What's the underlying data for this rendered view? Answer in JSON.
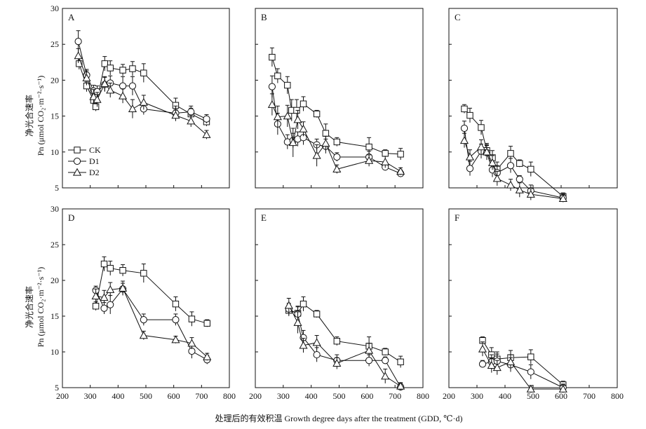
{
  "figure": {
    "x_axis_title": "处理后的有效积温 Growth degree days after the  treatment (GDD, ℃·d)",
    "y_axis_title_cn": "净光合速率",
    "y_axis_title_en": "Pn (μmol CO₂·m⁻²·s⁻¹)",
    "legend": {
      "entries": [
        {
          "label": "CK",
          "marker": "square"
        },
        {
          "label": "D1",
          "marker": "circle"
        },
        {
          "label": "D2",
          "marker": "triangle"
        }
      ]
    }
  },
  "chart_data": [
    {
      "panel": "A",
      "type": "line",
      "xlim": [
        200,
        800
      ],
      "ylim": [
        5,
        30
      ],
      "x_ticks": [
        200,
        300,
        400,
        500,
        600,
        700,
        800
      ],
      "y_ticks": [
        5,
        10,
        15,
        20,
        25,
        30
      ],
      "show_x_tick_labels": false,
      "show_y_tick_labels": true,
      "grid": false,
      "series": [
        {
          "name": "CK",
          "marker": "square",
          "points": [
            [
              260,
              22.3,
              0.8
            ],
            [
              287,
              19.2,
              0.8
            ],
            [
              312,
              17.2,
              0.8
            ],
            [
              320,
              16.3,
              0.6
            ],
            [
              352,
              22.3,
              1.0
            ],
            [
              372,
              21.7,
              1.0
            ],
            [
              417,
              21.4,
              0.8
            ],
            [
              452,
              21.6,
              1.0
            ],
            [
              492,
              21.0,
              1.3
            ],
            [
              607,
              16.5,
              1.0
            ],
            [
              662,
              15.3,
              0.8
            ],
            [
              718,
              14.2,
              0.6
            ]
          ]
        },
        {
          "name": "D1",
          "marker": "circle",
          "points": [
            [
              257,
              25.4,
              1.5
            ],
            [
              287,
              20.7,
              0.8
            ],
            [
              312,
              18.5,
              0.8
            ],
            [
              325,
              18.4,
              0.8
            ],
            [
              352,
              19.4,
              1.0
            ],
            [
              372,
              19.6,
              1.0
            ],
            [
              417,
              19.2,
              1.3
            ],
            [
              452,
              19.2,
              1.3
            ],
            [
              492,
              16.0,
              0.8
            ],
            [
              607,
              15.4,
              1.0
            ],
            [
              662,
              15.6,
              0.8
            ],
            [
              718,
              14.6,
              0.6
            ]
          ]
        },
        {
          "name": "D2",
          "marker": "triangle",
          "points": [
            [
              257,
              23.4,
              1.0
            ],
            [
              287,
              20.3,
              1.0
            ],
            [
              312,
              17.7,
              1.0
            ],
            [
              325,
              17.3,
              1.0
            ],
            [
              352,
              19.5,
              1.0
            ],
            [
              372,
              18.6,
              1.0
            ],
            [
              417,
              17.8,
              1.0
            ],
            [
              452,
              16.0,
              1.3
            ],
            [
              492,
              16.9,
              1.0
            ],
            [
              607,
              15.1,
              0.8
            ],
            [
              662,
              14.3,
              0.8
            ],
            [
              718,
              12.4,
              0.6
            ]
          ]
        }
      ]
    },
    {
      "panel": "B",
      "type": "line",
      "xlim": [
        200,
        800
      ],
      "ylim": [
        5,
        30
      ],
      "x_ticks": [
        200,
        300,
        400,
        500,
        600,
        700,
        800
      ],
      "y_ticks": [
        5,
        10,
        15,
        20,
        25,
        30
      ],
      "show_x_tick_labels": false,
      "show_y_tick_labels": false,
      "grid": false,
      "series": [
        {
          "name": "CK",
          "marker": "square",
          "points": [
            [
              260,
              23.2,
              1.3
            ],
            [
              280,
              20.6,
              1.0
            ],
            [
              315,
              19.3,
              1.2
            ],
            [
              330,
              15.8,
              1.5
            ],
            [
              348,
              15.8,
              1.5
            ],
            [
              372,
              16.7,
              1.0
            ],
            [
              420,
              15.3,
              0.5
            ],
            [
              452,
              12.6,
              1.3
            ],
            [
              492,
              11.4,
              0.6
            ],
            [
              607,
              10.7,
              1.3
            ],
            [
              665,
              9.8,
              0.5
            ],
            [
              720,
              9.7,
              0.8
            ]
          ]
        },
        {
          "name": "D1",
          "marker": "circle",
          "points": [
            [
              260,
              19.1,
              1.5
            ],
            [
              280,
              13.9,
              1.5
            ],
            [
              315,
              11.4,
              1.0
            ],
            [
              335,
              11.6,
              1.0
            ],
            [
              352,
              11.8,
              1.0
            ],
            [
              372,
              12.0,
              1.0
            ],
            [
              420,
              11.0,
              0.8
            ],
            [
              452,
              10.8,
              1.0
            ],
            [
              492,
              9.3,
              0.6
            ],
            [
              607,
              9.3,
              0.8
            ],
            [
              665,
              7.9,
              0.5
            ],
            [
              720,
              7.0,
              0.5
            ]
          ]
        },
        {
          "name": "D2",
          "marker": "triangle",
          "points": [
            [
              260,
              16.6,
              1.5
            ],
            [
              280,
              14.9,
              1.5
            ],
            [
              315,
              15.0,
              1.5
            ],
            [
              335,
              11.3,
              2.0
            ],
            [
              352,
              14.5,
              1.3
            ],
            [
              372,
              13.2,
              1.0
            ],
            [
              420,
              9.5,
              1.5
            ],
            [
              452,
              11.2,
              1.0
            ],
            [
              492,
              7.6,
              0.6
            ],
            [
              607,
              8.8,
              0.8
            ],
            [
              665,
              8.6,
              0.8
            ],
            [
              720,
              7.3,
              0.5
            ]
          ]
        }
      ]
    },
    {
      "panel": "C",
      "type": "line",
      "xlim": [
        200,
        800
      ],
      "ylim": [
        5,
        30
      ],
      "x_ticks": [
        200,
        300,
        400,
        500,
        600,
        700,
        800
      ],
      "y_ticks": [
        5,
        10,
        15,
        20,
        25,
        30
      ],
      "show_x_tick_labels": false,
      "show_y_tick_labels": false,
      "grid": false,
      "series": [
        {
          "name": "CK",
          "marker": "square",
          "points": [
            [
              255,
              16.0,
              0.6
            ],
            [
              275,
              15.1,
              1.0
            ],
            [
              315,
              13.4,
              1.0
            ],
            [
              335,
              10.2,
              1.0
            ],
            [
              355,
              9.2,
              1.0
            ],
            [
              372,
              7.6,
              1.0
            ],
            [
              420,
              9.8,
              1.0
            ],
            [
              452,
              8.4,
              0.5
            ],
            [
              492,
              7.6,
              1.0
            ],
            [
              607,
              3.8,
              0.5
            ]
          ]
        },
        {
          "name": "D1",
          "marker": "circle",
          "points": [
            [
              255,
              13.3,
              1.0
            ],
            [
              275,
              7.7,
              1.0
            ],
            [
              315,
              10.1,
              1.0
            ],
            [
              335,
              9.9,
              1.0
            ],
            [
              355,
              7.5,
              1.0
            ],
            [
              372,
              7.1,
              1.0
            ],
            [
              420,
              8.1,
              1.0
            ],
            [
              452,
              6.2,
              0.5
            ],
            [
              492,
              4.6,
              0.8
            ],
            [
              607,
              3.6,
              0.5
            ]
          ]
        },
        {
          "name": "D2",
          "marker": "triangle",
          "points": [
            [
              255,
              11.6,
              1.0
            ],
            [
              275,
              9.3,
              1.0
            ],
            [
              315,
              10.7,
              1.0
            ],
            [
              335,
              10.0,
              1.0
            ],
            [
              355,
              8.5,
              1.0
            ],
            [
              372,
              6.3,
              1.0
            ],
            [
              420,
              5.4,
              0.8
            ],
            [
              452,
              4.7,
              1.0
            ],
            [
              492,
              4.1,
              0.8
            ],
            [
              607,
              3.5,
              0.5
            ]
          ]
        }
      ]
    },
    {
      "panel": "D",
      "type": "line",
      "xlim": [
        200,
        800
      ],
      "ylim": [
        5,
        30
      ],
      "x_ticks": [
        200,
        300,
        400,
        500,
        600,
        700,
        800
      ],
      "y_ticks": [
        5,
        10,
        15,
        20,
        25,
        30
      ],
      "show_x_tick_labels": true,
      "show_y_tick_labels": true,
      "grid": false,
      "series": [
        {
          "name": "CK",
          "marker": "square",
          "points": [
            [
              320,
              16.4,
              0.6
            ],
            [
              350,
              22.3,
              1.0
            ],
            [
              372,
              21.7,
              1.0
            ],
            [
              417,
              21.4,
              0.8
            ],
            [
              492,
              21.0,
              1.3
            ],
            [
              607,
              16.7,
              1.0
            ],
            [
              665,
              14.6,
              1.0
            ],
            [
              720,
              14.0,
              0.5
            ]
          ]
        },
        {
          "name": "D1",
          "marker": "circle",
          "points": [
            [
              320,
              18.6,
              0.6
            ],
            [
              350,
              16.1,
              0.8
            ],
            [
              372,
              16.6,
              1.3
            ],
            [
              417,
              18.8,
              0.8
            ],
            [
              492,
              14.5,
              0.8
            ],
            [
              607,
              14.5,
              0.8
            ],
            [
              665,
              10.1,
              1.0
            ],
            [
              720,
              8.9,
              0.6
            ]
          ]
        },
        {
          "name": "D2",
          "marker": "triangle",
          "points": [
            [
              320,
              17.8,
              1.0
            ],
            [
              350,
              17.6,
              1.0
            ],
            [
              372,
              18.7,
              1.0
            ],
            [
              417,
              18.9,
              1.0
            ],
            [
              492,
              12.3,
              0.6
            ],
            [
              607,
              11.7,
              0.5
            ],
            [
              665,
              11.2,
              0.8
            ],
            [
              720,
              9.3,
              0.5
            ]
          ]
        }
      ]
    },
    {
      "panel": "E",
      "type": "line",
      "xlim": [
        200,
        800
      ],
      "ylim": [
        5,
        30
      ],
      "x_ticks": [
        200,
        300,
        400,
        500,
        600,
        700,
        800
      ],
      "y_ticks": [
        5,
        10,
        15,
        20,
        25,
        30
      ],
      "show_x_tick_labels": true,
      "show_y_tick_labels": false,
      "grid": false,
      "series": [
        {
          "name": "CK",
          "marker": "square",
          "points": [
            [
              320,
              15.8,
              0.8
            ],
            [
              352,
              15.4,
              1.0
            ],
            [
              372,
              16.7,
              1.0
            ],
            [
              420,
              15.3,
              0.5
            ],
            [
              492,
              11.5,
              0.6
            ],
            [
              607,
              10.8,
              1.3
            ],
            [
              665,
              10.0,
              0.5
            ],
            [
              720,
              8.6,
              0.8
            ]
          ]
        },
        {
          "name": "D1",
          "marker": "circle",
          "points": [
            [
              320,
              16.0,
              0.8
            ],
            [
              352,
              15.3,
              1.0
            ],
            [
              372,
              12.0,
              1.0
            ],
            [
              420,
              9.6,
              1.0
            ],
            [
              492,
              8.8,
              0.8
            ],
            [
              607,
              8.8,
              0.8
            ],
            [
              665,
              8.8,
              0.5
            ],
            [
              720,
              5.1,
              0.5
            ]
          ]
        },
        {
          "name": "D2",
          "marker": "triangle",
          "points": [
            [
              320,
              16.5,
              1.0
            ],
            [
              352,
              14.1,
              1.5
            ],
            [
              372,
              10.9,
              1.0
            ],
            [
              420,
              11.3,
              1.0
            ],
            [
              492,
              8.4,
              0.8
            ],
            [
              607,
              10.2,
              1.0
            ],
            [
              665,
              6.6,
              1.0
            ],
            [
              720,
              5.2,
              0.5
            ]
          ]
        }
      ]
    },
    {
      "panel": "F",
      "type": "line",
      "xlim": [
        200,
        800
      ],
      "ylim": [
        5,
        30
      ],
      "x_ticks": [
        200,
        300,
        400,
        500,
        600,
        700,
        800
      ],
      "y_ticks": [
        5,
        10,
        15,
        20,
        25,
        30
      ],
      "show_x_tick_labels": true,
      "show_y_tick_labels": false,
      "grid": false,
      "series": [
        {
          "name": "CK",
          "marker": "square",
          "points": [
            [
              320,
              11.6,
              0.5
            ],
            [
              352,
              9.6,
              1.0
            ],
            [
              372,
              9.0,
              1.0
            ],
            [
              420,
              9.2,
              1.0
            ],
            [
              492,
              9.3,
              1.0
            ],
            [
              607,
              5.4,
              0.5
            ]
          ]
        },
        {
          "name": "D1",
          "marker": "circle",
          "points": [
            [
              320,
              8.3,
              0.5
            ],
            [
              352,
              8.6,
              1.0
            ],
            [
              372,
              8.7,
              1.0
            ],
            [
              420,
              8.2,
              1.0
            ],
            [
              492,
              7.2,
              1.0
            ],
            [
              607,
              5.0,
              0.5
            ]
          ]
        },
        {
          "name": "D2",
          "marker": "triangle",
          "points": [
            [
              320,
              10.4,
              1.0
            ],
            [
              352,
              8.1,
              1.0
            ],
            [
              372,
              7.8,
              1.0
            ],
            [
              420,
              8.6,
              1.0
            ],
            [
              492,
              4.8,
              0.5
            ],
            [
              607,
              4.8,
              0.5
            ]
          ]
        }
      ]
    }
  ]
}
